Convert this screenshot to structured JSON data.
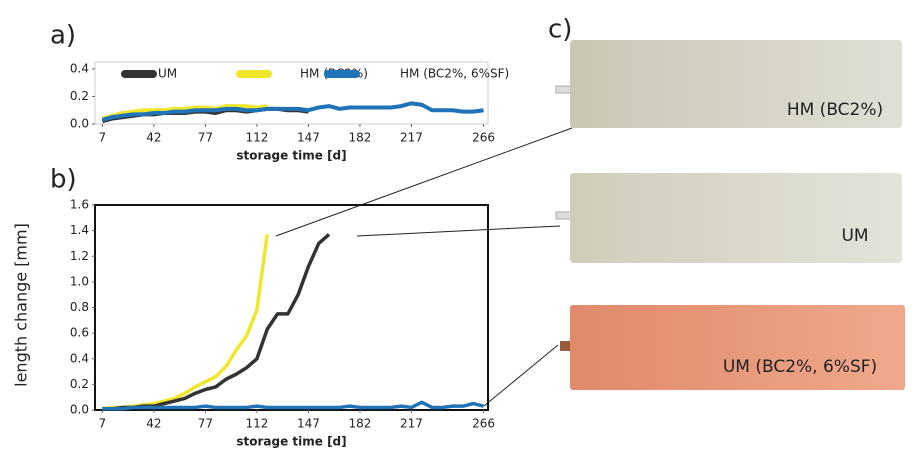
{
  "chart_data": [
    {
      "type": "line",
      "panel": "a)",
      "x_label": "storage time [d]",
      "xlim": [
        2,
        269
      ],
      "xticks": [
        7,
        42,
        77,
        112,
        147,
        182,
        217,
        266
      ],
      "ylim": [
        0,
        0.45
      ],
      "yticks": [
        {
          "value": 0,
          "label": "0.0"
        },
        0.2,
        0.4
      ],
      "legend": "top",
      "series": [
        {
          "name": "UM",
          "color": "#333333",
          "x": [
            7,
            14,
            21,
            28,
            35,
            42,
            49,
            56,
            63,
            70,
            77,
            84,
            91,
            98,
            105,
            112,
            119,
            126,
            133,
            140,
            147
          ],
          "values": [
            0.02,
            0.04,
            0.05,
            0.06,
            0.07,
            0.07,
            0.08,
            0.08,
            0.08,
            0.09,
            0.09,
            0.08,
            0.1,
            0.1,
            0.09,
            0.1,
            0.11,
            0.11,
            0.1,
            0.1,
            0.09
          ]
        },
        {
          "name": "HM (BC2%)",
          "color": "#f0e62a",
          "x": [
            7,
            14,
            21,
            28,
            35,
            42,
            49,
            56,
            63,
            70,
            77,
            84,
            91,
            98,
            105,
            112,
            119
          ],
          "values": [
            0.04,
            0.06,
            0.08,
            0.09,
            0.1,
            0.1,
            0.1,
            0.11,
            0.11,
            0.12,
            0.12,
            0.11,
            0.13,
            0.13,
            0.13,
            0.12,
            0.13
          ]
        },
        {
          "name": "HM (BC2%, 6%SF)",
          "color": "#1f73b7",
          "x": [
            7,
            14,
            21,
            28,
            35,
            42,
            49,
            56,
            63,
            70,
            77,
            84,
            91,
            98,
            105,
            112,
            119,
            126,
            133,
            140,
            147,
            154,
            161,
            168,
            175,
            182,
            189,
            196,
            203,
            210,
            217,
            224,
            231,
            238,
            245,
            252,
            259,
            266
          ],
          "values": [
            0.03,
            0.05,
            0.06,
            0.07,
            0.07,
            0.08,
            0.08,
            0.09,
            0.09,
            0.1,
            0.1,
            0.1,
            0.11,
            0.11,
            0.1,
            0.1,
            0.11,
            0.11,
            0.11,
            0.11,
            0.1,
            0.12,
            0.13,
            0.11,
            0.12,
            0.12,
            0.12,
            0.12,
            0.12,
            0.13,
            0.15,
            0.14,
            0.1,
            0.1,
            0.1,
            0.09,
            0.09,
            0.1
          ]
        }
      ]
    },
    {
      "type": "line",
      "panel": "b)",
      "x_label": "storage time [d]",
      "y_label": "length change [mm]",
      "xlim": [
        2,
        269
      ],
      "xticks": [
        7,
        42,
        77,
        112,
        147,
        182,
        217,
        266
      ],
      "ylim": [
        0,
        1.6
      ],
      "yticks": [
        {
          "value": 0,
          "label": "0.0"
        },
        0.2,
        0.4,
        0.6,
        0.8,
        {
          "value": 1,
          "label": "1.0"
        },
        1.2,
        1.4,
        1.6
      ],
      "series": [
        {
          "color": "#f0e62a",
          "x": [
            7,
            14,
            21,
            28,
            35,
            42,
            49,
            56,
            63,
            70,
            77,
            84,
            91,
            98,
            105,
            112,
            119
          ],
          "values": [
            0.01,
            0.02,
            0.02,
            0.03,
            0.04,
            0.05,
            0.07,
            0.09,
            0.13,
            0.18,
            0.22,
            0.26,
            0.34,
            0.47,
            0.58,
            0.78,
            1.37
          ]
        },
        {
          "color": "#333333",
          "x": [
            7,
            14,
            21,
            28,
            35,
            42,
            49,
            56,
            63,
            70,
            77,
            84,
            91,
            98,
            105,
            112,
            119,
            126,
            133,
            140,
            147,
            154,
            161
          ],
          "values": [
            0.01,
            0.01,
            0.02,
            0.02,
            0.03,
            0.03,
            0.05,
            0.07,
            0.09,
            0.13,
            0.16,
            0.18,
            0.24,
            0.28,
            0.33,
            0.4,
            0.63,
            0.75,
            0.75,
            0.9,
            1.12,
            1.3,
            1.37
          ]
        },
        {
          "color": "#1f73b7",
          "x": [
            7,
            14,
            21,
            28,
            35,
            42,
            49,
            56,
            63,
            70,
            77,
            84,
            91,
            98,
            105,
            112,
            119,
            126,
            133,
            140,
            147,
            154,
            161,
            168,
            175,
            182,
            189,
            196,
            203,
            210,
            217,
            224,
            231,
            238,
            245,
            252,
            259,
            266
          ],
          "values": [
            0.01,
            0.01,
            0.01,
            0.02,
            0.02,
            0.02,
            0.02,
            0.02,
            0.02,
            0.02,
            0.03,
            0.02,
            0.02,
            0.02,
            0.02,
            0.03,
            0.02,
            0.02,
            0.02,
            0.02,
            0.02,
            0.02,
            0.02,
            0.02,
            0.03,
            0.02,
            0.02,
            0.02,
            0.02,
            0.03,
            0.02,
            0.06,
            0.02,
            0.02,
            0.03,
            0.03,
            0.05,
            0.03
          ]
        }
      ]
    }
  ],
  "panel_c": "c)",
  "photos": [
    {
      "label": "HM (BC2%)"
    },
    {
      "label": "UM"
    },
    {
      "label": "UM (BC2%, 6%SF)"
    }
  ]
}
